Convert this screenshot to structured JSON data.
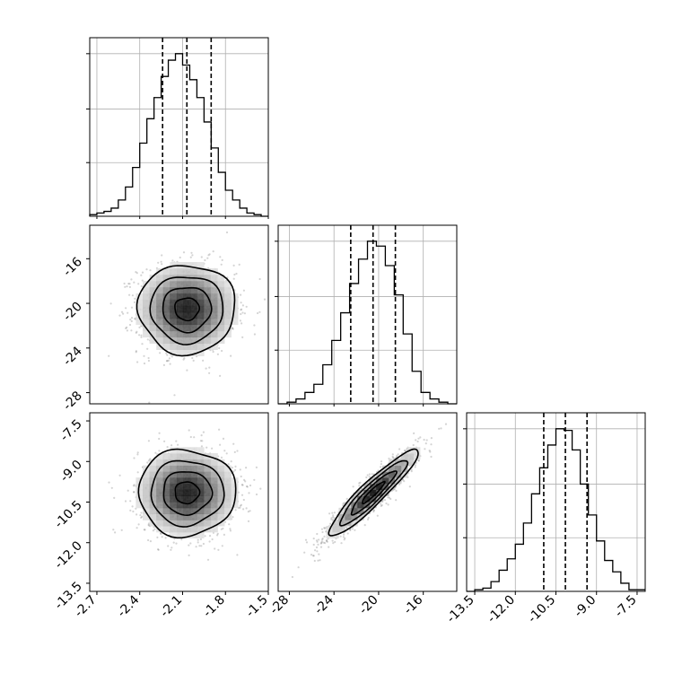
{
  "chart_data": {
    "type": "corner",
    "grid": true,
    "parameters": [
      {
        "ticks": [
          "-2.7",
          "-2.4",
          "-2.1",
          "-1.8",
          "-1.5"
        ],
        "range": [
          -2.75,
          -1.5
        ],
        "quantiles": [
          -2.24,
          -2.07,
          -1.9
        ],
        "hist_bins": [
          -2.75,
          -2.7,
          -2.65,
          -2.6,
          -2.55,
          -2.5,
          -2.45,
          -2.4,
          -2.35,
          -2.3,
          -2.25,
          -2.2,
          -2.15,
          -2.1,
          -2.05,
          -2.0,
          -1.95,
          -1.9,
          -1.85,
          -1.8,
          -1.75,
          -1.7,
          -1.65,
          -1.6,
          -1.55,
          -1.5
        ],
        "hist_heights": [
          0.01,
          0.02,
          0.03,
          0.05,
          0.1,
          0.18,
          0.3,
          0.45,
          0.6,
          0.73,
          0.86,
          0.96,
          1.0,
          0.93,
          0.84,
          0.73,
          0.58,
          0.42,
          0.27,
          0.16,
          0.1,
          0.05,
          0.02,
          0.01,
          0.0
        ]
      },
      {
        "ticks": [
          "-28",
          "-24",
          "-20",
          "-16"
        ],
        "range": [
          -29,
          -13
        ],
        "quantiles": [
          -22.5,
          -20.5,
          -18.5
        ],
        "hist_bins": [
          -29,
          -28.2,
          -27.4,
          -26.6,
          -25.8,
          -25,
          -24.2,
          -23.4,
          -22.6,
          -21.8,
          -21,
          -20.2,
          -19.4,
          -18.6,
          -17.8,
          -17,
          -16.2,
          -15.4,
          -14.6,
          -13.8,
          -13
        ],
        "hist_heights": [
          0.0,
          0.01,
          0.03,
          0.07,
          0.12,
          0.24,
          0.39,
          0.56,
          0.74,
          0.89,
          1.0,
          0.97,
          0.85,
          0.67,
          0.43,
          0.2,
          0.07,
          0.03,
          0.01,
          0.0
        ]
      },
      {
        "ticks": [
          "-13.5",
          "-12.0",
          "-10.5",
          "-9.0",
          "-7.5"
        ],
        "range": [
          -13.8,
          -7.2
        ],
        "quantiles": [
          -10.95,
          -10.15,
          -9.35
        ],
        "hist_bins": [
          -13.8,
          -13.5,
          -13.2,
          -12.9,
          -12.6,
          -12.3,
          -12.0,
          -11.7,
          -11.4,
          -11.1,
          -10.8,
          -10.5,
          -10.2,
          -9.9,
          -9.6,
          -9.3,
          -9.0,
          -8.7,
          -8.4,
          -8.1,
          -7.8,
          -7.5,
          -7.2
        ],
        "hist_heights": [
          0.0,
          0.01,
          0.02,
          0.06,
          0.13,
          0.2,
          0.29,
          0.42,
          0.6,
          0.76,
          0.9,
          1.0,
          0.99,
          0.87,
          0.66,
          0.47,
          0.31,
          0.19,
          0.12,
          0.05,
          0.01,
          0.01
        ]
      }
    ],
    "pairs": [
      {
        "x_param": 0,
        "y_param": 1,
        "center": [
          -2.07,
          -20.5
        ],
        "sigma": [
          0.17,
          2.0
        ],
        "rho": 0.0,
        "contour_levels": [
          0.5,
          1.0,
          1.5,
          2.0
        ]
      },
      {
        "x_param": 0,
        "y_param": 2,
        "center": [
          -2.07,
          -10.15
        ],
        "sigma": [
          0.17,
          0.8
        ],
        "rho": 0.0,
        "contour_levels": [
          0.5,
          1.0,
          1.5,
          2.0
        ]
      },
      {
        "x_param": 1,
        "y_param": 2,
        "center": [
          -20.5,
          -10.15
        ],
        "sigma": [
          2.0,
          0.8
        ],
        "rho": 0.93,
        "contour_levels": [
          0.5,
          1.0,
          1.5,
          2.0
        ]
      }
    ]
  }
}
